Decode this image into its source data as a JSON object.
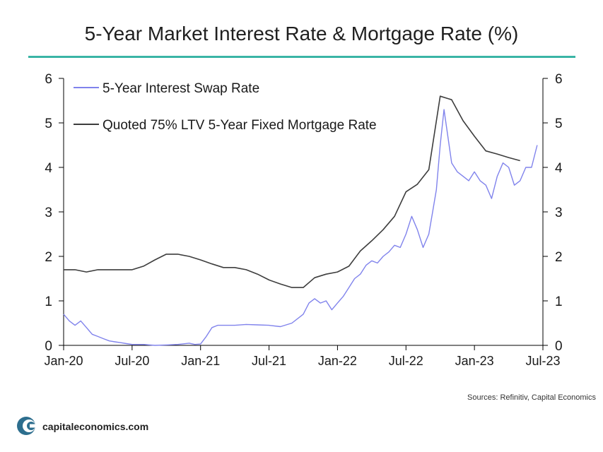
{
  "title": "5-Year Market Interest Rate & Mortgage Rate (%)",
  "source": "Sources: Refinitiv, Capital Economics",
  "logo_text": "capitaleconomics.com",
  "colors": {
    "swap": "#8083ec",
    "mortgage": "#3d3d3d",
    "rule": "#3ab5a5",
    "logo": "#2d6e8e"
  },
  "chart_data": {
    "type": "line",
    "x_ticks": [
      "Jan-20",
      "Jul-20",
      "Jan-21",
      "Jul-21",
      "Jan-22",
      "Jul-22",
      "Jan-23",
      "Jul-23"
    ],
    "xlim": [
      "2020-01",
      "2023-07"
    ],
    "ylim": [
      0,
      6
    ],
    "y_ticks": [
      0,
      1,
      2,
      3,
      4,
      5,
      6
    ],
    "legend_position": "top-left",
    "series": [
      {
        "name": "5-Year Interest Swap Rate",
        "x": [
          "2020-01",
          "2020-01",
          "2020-02",
          "2020-02",
          "2020-03",
          "2020-03",
          "2020-04",
          "2020-04",
          "2020-05",
          "2020-05",
          "2020-06",
          "2020-06",
          "2020-07",
          "2020-08",
          "2020-09",
          "2020-10",
          "2020-11",
          "2020-12",
          "2020-12",
          "2021-01",
          "2021-01",
          "2021-02",
          "2021-02",
          "2021-03",
          "2021-04",
          "2021-05",
          "2021-06",
          "2021-07",
          "2021-08",
          "2021-09",
          "2021-10",
          "2021-10",
          "2021-11",
          "2021-11",
          "2021-12",
          "2021-12",
          "2022-01",
          "2022-01",
          "2022-02",
          "2022-02",
          "2022-03",
          "2022-03",
          "2022-04",
          "2022-04",
          "2022-05",
          "2022-05",
          "2022-06",
          "2022-06",
          "2022-07",
          "2022-07",
          "2022-08",
          "2022-08",
          "2022-09",
          "2022-09",
          "2022-09",
          "2022-10",
          "2022-10",
          "2022-10",
          "2022-11",
          "2022-11",
          "2022-12",
          "2022-12",
          "2023-01",
          "2023-01",
          "2023-02",
          "2023-02",
          "2023-03",
          "2023-03",
          "2023-04",
          "2023-04",
          "2023-05",
          "2023-05",
          "2023-06",
          "2023-06"
        ],
        "y": [
          0.7,
          0.55,
          0.45,
          0.55,
          0.4,
          0.25,
          0.2,
          0.15,
          0.1,
          0.08,
          0.06,
          0.04,
          0.02,
          0.02,
          0.0,
          0.01,
          0.02,
          0.05,
          0.02,
          0.03,
          0.2,
          0.4,
          0.45,
          0.45,
          0.45,
          0.47,
          0.46,
          0.45,
          0.42,
          0.5,
          0.7,
          0.95,
          1.05,
          0.95,
          1.0,
          0.8,
          0.95,
          1.1,
          1.3,
          1.5,
          1.6,
          1.8,
          1.9,
          1.85,
          2.0,
          2.1,
          2.25,
          2.2,
          2.5,
          2.9,
          2.6,
          2.2,
          2.5,
          3.0,
          3.5,
          4.5,
          5.3,
          4.7,
          4.1,
          3.9,
          3.8,
          3.7,
          3.9,
          3.7,
          3.6,
          3.3,
          3.8,
          4.1,
          4.0,
          3.6,
          3.7,
          4.0,
          4.0,
          4.5
        ]
      },
      {
        "name": "Quoted 75% LTV 5-Year Fixed Mortgage Rate",
        "x": [
          "2020-01",
          "2020-02",
          "2020-03",
          "2020-04",
          "2020-05",
          "2020-06",
          "2020-07",
          "2020-08",
          "2020-09",
          "2020-10",
          "2020-11",
          "2020-12",
          "2021-01",
          "2021-02",
          "2021-03",
          "2021-04",
          "2021-05",
          "2021-06",
          "2021-07",
          "2021-08",
          "2021-09",
          "2021-10",
          "2021-11",
          "2021-12",
          "2022-01",
          "2022-02",
          "2022-03",
          "2022-04",
          "2022-05",
          "2022-06",
          "2022-07",
          "2022-08",
          "2022-09",
          "2022-10",
          "2022-11",
          "2022-12",
          "2023-01",
          "2023-02",
          "2023-03",
          "2023-04",
          "2023-05"
        ],
        "y": [
          1.7,
          1.7,
          1.65,
          1.7,
          1.7,
          1.7,
          1.7,
          1.78,
          1.92,
          2.05,
          2.05,
          2.0,
          1.92,
          1.83,
          1.75,
          1.75,
          1.7,
          1.6,
          1.47,
          1.38,
          1.3,
          1.3,
          1.52,
          1.6,
          1.65,
          1.78,
          2.12,
          2.35,
          2.6,
          2.9,
          3.45,
          3.62,
          3.95,
          5.6,
          5.52,
          5.05,
          4.7,
          4.37,
          4.3,
          4.22,
          4.15
        ]
      }
    ]
  }
}
